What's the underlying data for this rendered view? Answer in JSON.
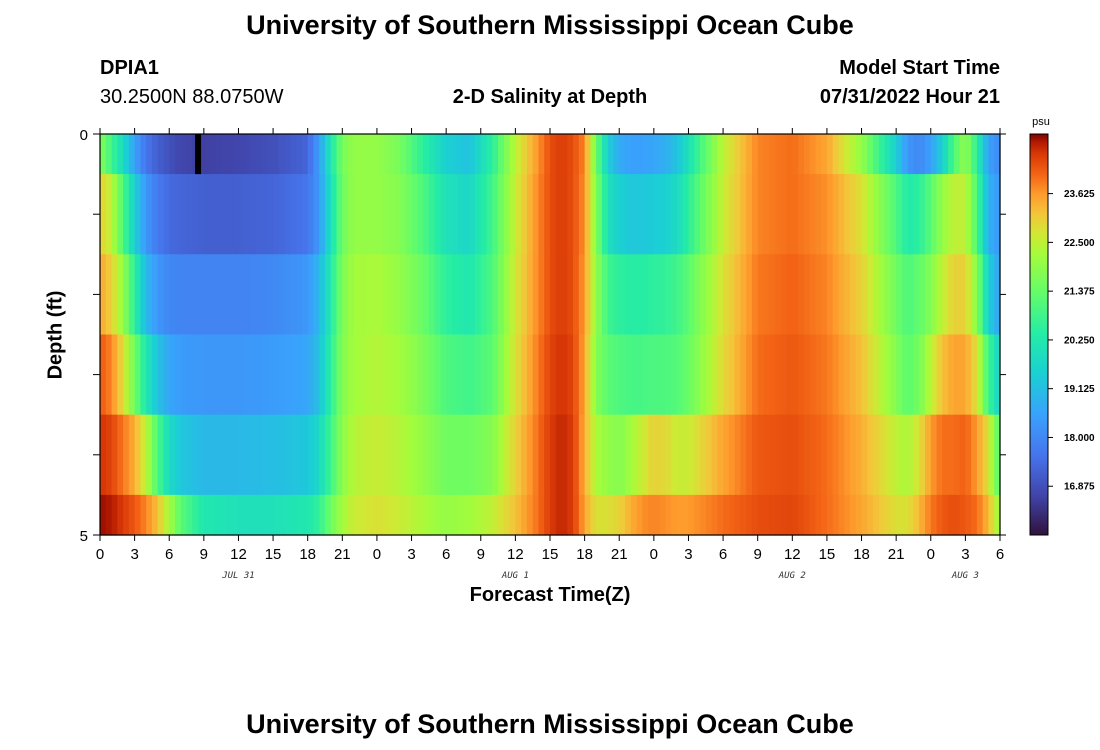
{
  "header": {
    "title": "University of Southern Mississippi Ocean Cube",
    "station": "DPIA1",
    "coords": "30.2500N  88.0750W",
    "plot_title": "2-D Salinity at Depth",
    "start_label": "Model Start Time",
    "start_value": "07/31/2022 Hour 21"
  },
  "footer": {
    "title": "University of Southern Mississippi Ocean Cube"
  },
  "chart_data": {
    "type": "heatmap",
    "title": "2-D Salinity at Depth",
    "xlabel": "Forecast Time(Z)",
    "ylabel": "Depth (ft)",
    "y_ticks": [
      "0",
      "5"
    ],
    "y_range": [
      0,
      5
    ],
    "x_tick_labels": [
      "0",
      "3",
      "6",
      "9",
      "12",
      "15",
      "18",
      "21",
      "0",
      "3",
      "6",
      "9",
      "12",
      "15",
      "18",
      "21",
      "0",
      "3",
      "6",
      "9",
      "12",
      "15",
      "18",
      "21",
      "0",
      "3",
      "6"
    ],
    "date_labels": [
      {
        "text": "JUL 31",
        "hour": 12
      },
      {
        "text": "AUG 1",
        "hour": 36
      },
      {
        "text": "AUG 2",
        "hour": 60
      },
      {
        "text": "AUG 3",
        "hour": 75
      }
    ],
    "x_range_hours": [
      0,
      78
    ],
    "colorbar": {
      "unit": "psu",
      "min": 15.75,
      "max": 25.0,
      "ticks": [
        "23.625",
        "22.500",
        "21.375",
        "20.250",
        "19.125",
        "18.000",
        "16.875"
      ],
      "tick_values": [
        23.625,
        22.5,
        21.375,
        20.25,
        19.125,
        18.0,
        16.875
      ]
    },
    "depth_layers": [
      "0-0.5",
      "0.5-1.5",
      "1.5-2.5",
      "2.5-3.5",
      "3.5-4.5",
      "4.5-5"
    ],
    "time_keyframes_hours": [
      0,
      1,
      2,
      3,
      4,
      5,
      6,
      7,
      9,
      12,
      15,
      18,
      19,
      20,
      21,
      22,
      24,
      26,
      28,
      30,
      32,
      34,
      36,
      38,
      39,
      40,
      41,
      42,
      43,
      44,
      45,
      46,
      47,
      48,
      49,
      50,
      51,
      54,
      57,
      60,
      63,
      66,
      69,
      70,
      71,
      72,
      73,
      74,
      75,
      76,
      77,
      78
    ],
    "salinity_keyframes": [
      [
        21.8,
        20.8,
        19.8,
        18.5,
        17.6,
        17.2,
        16.9,
        16.7,
        16.6,
        16.7,
        16.9,
        17.3,
        18.5,
        20.2,
        21.6,
        22.0,
        22.0,
        21.6,
        20.5,
        19.5,
        19.2,
        20.5,
        22.5,
        23.7,
        24.3,
        24.5,
        24.3,
        23.8,
        21.5,
        19.5,
        18.7,
        18.5,
        18.5,
        18.6,
        18.8,
        19.2,
        20.0,
        22.5,
        23.8,
        24.0,
        23.5,
        22.0,
        19.5,
        18.3,
        18.0,
        18.5,
        19.5,
        21.0,
        22.0,
        20.5,
        18.5,
        18.0
      ],
      [
        23.0,
        22.5,
        21.0,
        19.5,
        18.3,
        17.7,
        17.4,
        17.3,
        17.2,
        17.2,
        17.3,
        17.6,
        18.4,
        20.0,
        21.5,
        22.0,
        22.0,
        21.8,
        21.0,
        20.0,
        19.7,
        20.8,
        22.6,
        23.8,
        24.3,
        24.5,
        24.3,
        23.7,
        21.8,
        20.0,
        19.5,
        19.3,
        19.3,
        19.4,
        19.5,
        19.8,
        20.5,
        22.6,
        23.8,
        24.0,
        23.7,
        22.8,
        21.0,
        20.3,
        20.5,
        21.2,
        22.0,
        22.5,
        22.5,
        21.0,
        18.8,
        18.3
      ],
      [
        23.5,
        23.0,
        22.0,
        20.5,
        19.0,
        18.3,
        18.0,
        17.9,
        17.9,
        17.9,
        18.0,
        18.3,
        19.0,
        20.3,
        21.7,
        22.2,
        22.3,
        22.0,
        21.4,
        20.5,
        20.2,
        21.0,
        22.7,
        23.8,
        24.3,
        24.5,
        24.3,
        23.6,
        22.0,
        20.8,
        20.5,
        20.4,
        20.4,
        20.5,
        20.6,
        20.8,
        21.2,
        22.8,
        23.9,
        24.1,
        23.8,
        23.0,
        21.5,
        21.0,
        21.3,
        21.8,
        22.5,
        23.0,
        23.0,
        21.8,
        19.5,
        18.5
      ],
      [
        24.2,
        23.8,
        22.8,
        21.5,
        20.2,
        19.2,
        18.6,
        18.4,
        18.3,
        18.3,
        18.4,
        18.6,
        19.2,
        20.5,
        21.8,
        22.2,
        22.4,
        22.2,
        21.7,
        21.0,
        20.8,
        21.2,
        22.8,
        23.9,
        24.4,
        24.6,
        24.4,
        23.5,
        21.8,
        21.2,
        21.0,
        20.9,
        20.9,
        21.0,
        21.0,
        21.1,
        21.4,
        22.9,
        24.0,
        24.2,
        23.9,
        23.2,
        21.8,
        21.2,
        21.6,
        22.5,
        23.2,
        23.5,
        23.5,
        22.8,
        20.8,
        19.5
      ],
      [
        24.6,
        24.4,
        23.9,
        23.4,
        22.5,
        21.0,
        19.8,
        19.3,
        19.0,
        19.0,
        19.1,
        19.3,
        19.8,
        20.8,
        21.9,
        22.4,
        22.6,
        22.4,
        22.0,
        21.5,
        21.5,
        21.8,
        23.0,
        24.0,
        24.5,
        24.7,
        24.5,
        23.4,
        22.3,
        22.0,
        21.8,
        22.2,
        22.6,
        23.0,
        22.9,
        22.6,
        22.6,
        23.5,
        24.2,
        24.3,
        24.0,
        23.4,
        22.5,
        22.3,
        22.8,
        23.6,
        24.0,
        24.0,
        24.1,
        23.6,
        22.8,
        21.0
      ],
      [
        24.9,
        24.8,
        24.5,
        24.2,
        23.8,
        23.2,
        22.2,
        21.2,
        20.2,
        20.0,
        20.0,
        20.2,
        20.6,
        21.5,
        22.2,
        22.6,
        22.8,
        22.6,
        22.3,
        22.0,
        22.2,
        22.5,
        23.2,
        24.0,
        24.5,
        24.7,
        24.5,
        23.5,
        22.8,
        22.8,
        23.0,
        23.4,
        23.7,
        23.8,
        23.7,
        23.6,
        23.6,
        24.0,
        24.3,
        24.4,
        24.0,
        23.5,
        22.8,
        22.8,
        23.3,
        23.9,
        24.2,
        24.3,
        24.2,
        24.0,
        23.3,
        22.0
      ]
    ],
    "surface_mark": {
      "hour": 8.5,
      "color": "#000000"
    }
  }
}
